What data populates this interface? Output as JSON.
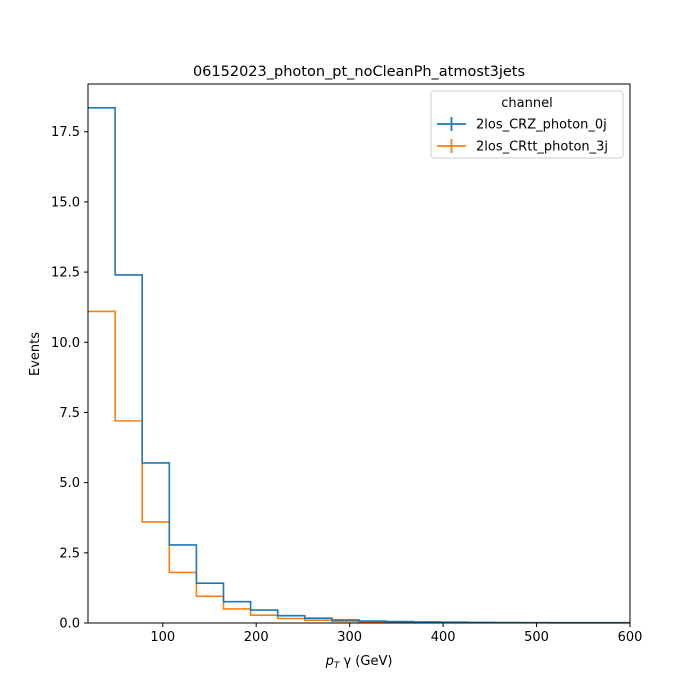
{
  "chart_data": {
    "type": "step_histogram",
    "title": "06152023_photon_pt_noCleanPh_atmost3jets",
    "xlabel": {
      "main": "p",
      "sub": "T",
      "rest": " γ (GeV)"
    },
    "ylabel": "Events",
    "xlim": [
      20,
      600
    ],
    "ylim": [
      0,
      19.2
    ],
    "xticks": [
      100,
      200,
      300,
      400,
      500,
      600
    ],
    "yticks": [
      0.0,
      2.5,
      5.0,
      7.5,
      10.0,
      12.5,
      15.0,
      17.5
    ],
    "ytick_labels": [
      "0.0",
      "2.5",
      "5.0",
      "7.5",
      "10.0",
      "12.5",
      "15.0",
      "17.5"
    ],
    "bin_edges": [
      20,
      49,
      78,
      107,
      136,
      165,
      194,
      223,
      252,
      281,
      310,
      339,
      368,
      397,
      426,
      455,
      484,
      513,
      542,
      571,
      600
    ],
    "legend": {
      "title": "channel",
      "position": "top-right"
    },
    "series": [
      {
        "name": "2los_CRZ_photon_0j",
        "color": "#1f77b4",
        "values": [
          18.35,
          12.4,
          5.7,
          2.78,
          1.42,
          0.76,
          0.46,
          0.26,
          0.17,
          0.11,
          0.07,
          0.05,
          0.04,
          0.03,
          0.02,
          0.015,
          0.01,
          0.01,
          0.01,
          0.01
        ]
      },
      {
        "name": "2los_CRtt_photon_3j",
        "color": "#ff7f0e",
        "values": [
          11.1,
          7.2,
          3.6,
          1.8,
          0.95,
          0.5,
          0.28,
          0.16,
          0.1,
          0.06,
          0.04,
          0.03,
          0.02,
          0.015,
          0.01,
          0.01,
          0.01,
          0.005,
          0.005,
          0.005
        ]
      }
    ]
  }
}
